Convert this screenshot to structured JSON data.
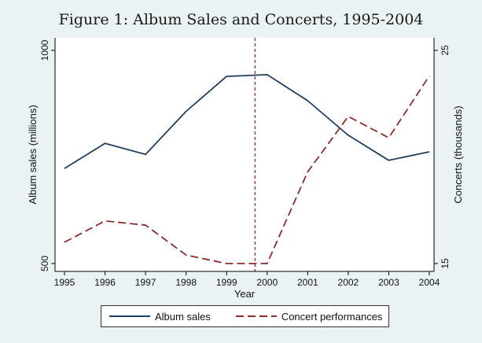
{
  "title": "Figure 1:  Album Sales and Concerts, 1995-2004",
  "chart_data": {
    "type": "line",
    "title": "Figure 1:  Album Sales and Concerts, 1995-2004",
    "xlabel": "Year",
    "ylabel_left": "Album sales (millions)",
    "ylabel_right": "Concerts (thousands)",
    "x": [
      1995,
      1996,
      1997,
      1998,
      1999,
      2000,
      2001,
      2002,
      2003,
      2004
    ],
    "xlim": [
      1995,
      2004
    ],
    "ylim_left": [
      500,
      1000
    ],
    "ylim_right": [
      15,
      25
    ],
    "yticks_left": [
      500,
      1000
    ],
    "yticks_right": [
      15,
      25
    ],
    "grid": false,
    "legend_position": "bottom",
    "vline": {
      "x": 1999.7,
      "style": "dashed",
      "color": "#9b2335"
    },
    "series": [
      {
        "name": "Album sales",
        "axis": "left",
        "style": "solid",
        "color": "#1f3f5f",
        "values": [
          723,
          782,
          756,
          857,
          939,
          943,
          882,
          801,
          742,
          762
        ]
      },
      {
        "name": "Concert performances",
        "axis": "right",
        "style": "dashed",
        "color": "#8b2d2d",
        "values": [
          16.0,
          17.0,
          16.8,
          15.4,
          15.0,
          15.0,
          19.3,
          21.9,
          20.9,
          23.8
        ]
      }
    ]
  }
}
